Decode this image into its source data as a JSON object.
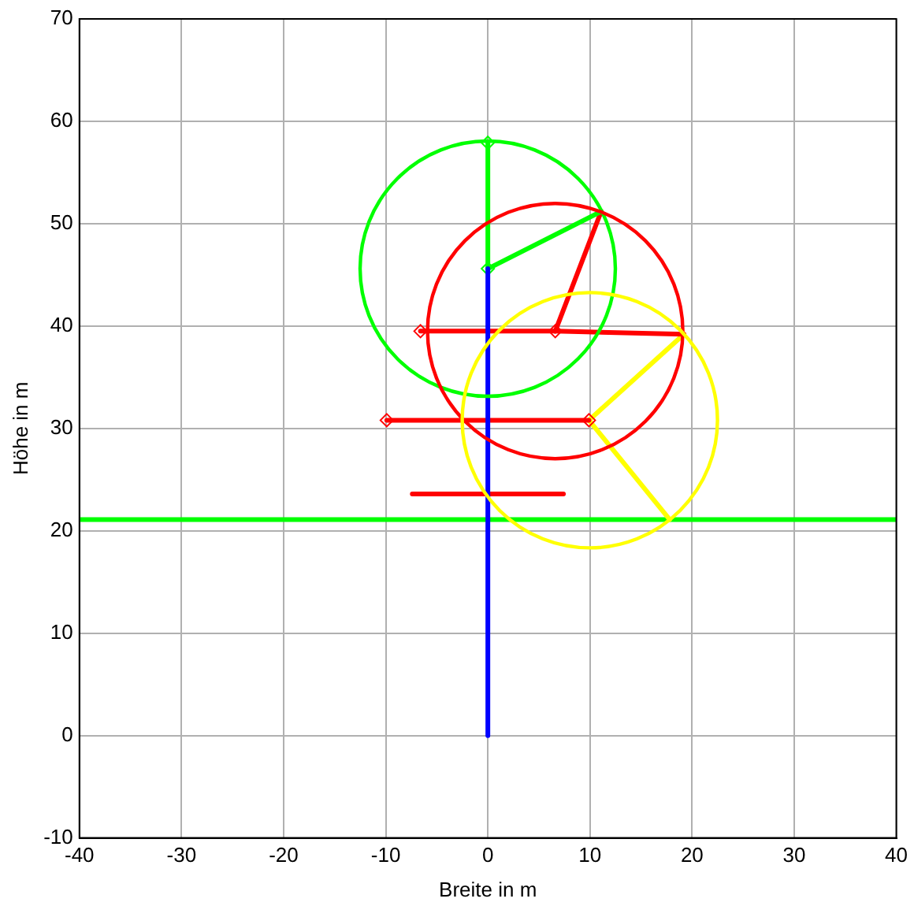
{
  "chart_data": {
    "type": "line",
    "xlabel": "Breite in m",
    "ylabel": "Höhe in m",
    "xlim": [
      -40,
      40
    ],
    "xticks": [
      -40,
      -30,
      -20,
      -10,
      0,
      10,
      20,
      30,
      40
    ],
    "ylim": [
      -10,
      70
    ],
    "yticks": [
      -10,
      0,
      10,
      20,
      30,
      40,
      50,
      60,
      70
    ],
    "grid": true,
    "legend": false,
    "marker": "none",
    "ref_lines": [
      {
        "axis": "y",
        "value": 21.1,
        "color": "#00ff00"
      }
    ],
    "series": [
      {
        "type": "line",
        "color": "#0000ff",
        "x": [
          0,
          0
        ],
        "values": [
          0,
          45.6
        ]
      },
      {
        "type": "line",
        "color": "#ff0000",
        "x": [
          -6.6,
          6.6
        ],
        "values": [
          39.5,
          39.5
        ],
        "marker": "diamond"
      },
      {
        "type": "line",
        "color": "#ff0000",
        "x": [
          -9.9,
          9.9
        ],
        "values": [
          30.8,
          30.8
        ],
        "marker": "diamond"
      },
      {
        "type": "line",
        "color": "#ff0000",
        "x": [
          -7.4,
          7.4
        ],
        "values": [
          23.6,
          23.6
        ]
      },
      {
        "type": "line",
        "color": "#00ff00",
        "x": [
          0,
          0
        ],
        "values": [
          45.6,
          57.9
        ],
        "marker": "diamond"
      },
      {
        "type": "line",
        "color": "#00ff00",
        "x": [
          0,
          11.1
        ],
        "values": [
          45.6,
          51.2
        ]
      },
      {
        "type": "line",
        "color": "#ff0000",
        "x": [
          6.6,
          11.1
        ],
        "values": [
          39.5,
          51.2
        ]
      },
      {
        "type": "line",
        "color": "#ff0000",
        "x": [
          6.6,
          19.2
        ],
        "values": [
          39.5,
          39.2
        ]
      },
      {
        "type": "line",
        "color": "#ffff00",
        "x": [
          9.9,
          19.2
        ],
        "values": [
          30.8,
          39.2
        ]
      },
      {
        "type": "line",
        "color": "#ffff00",
        "x": [
          9.9,
          17.8
        ],
        "values": [
          30.8,
          21.1
        ]
      }
    ]
  }
}
